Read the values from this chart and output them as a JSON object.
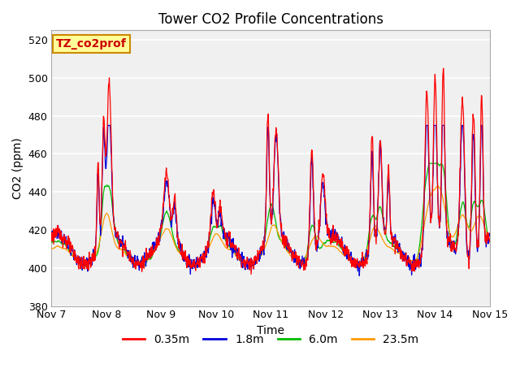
{
  "title": "Tower CO2 Profile Concentrations",
  "xlabel": "Time",
  "ylabel": "CO2 (ppm)",
  "ylim": [
    380,
    525
  ],
  "yticks": [
    380,
    400,
    420,
    440,
    460,
    480,
    500,
    520
  ],
  "xlim": [
    0,
    8
  ],
  "xtick_labels": [
    "Nov 7",
    "Nov 8",
    "Nov 9",
    "Nov 10",
    "Nov 11",
    "Nov 12",
    "Nov 13",
    "Nov 14",
    "Nov 15"
  ],
  "xtick_positions": [
    0,
    1,
    2,
    3,
    4,
    5,
    6,
    7,
    8
  ],
  "colors": {
    "0.35m": "#ff0000",
    "1.8m": "#0000dd",
    "6.0m": "#00bb00",
    "23.5m": "#ff9900"
  },
  "legend_labels": [
    "0.35m",
    "1.8m",
    "6.0m",
    "23.5m"
  ],
  "annotation_text": "TZ_co2prof",
  "annotation_box_color": "#ffff99",
  "annotation_box_edge": "#cc8800",
  "axes_bg": "#dcdcdc",
  "plot_bg": "#f0f0f0",
  "grid_color": "#ffffff",
  "title_fontsize": 12,
  "axis_label_fontsize": 10,
  "tick_fontsize": 9,
  "legend_fontsize": 10
}
